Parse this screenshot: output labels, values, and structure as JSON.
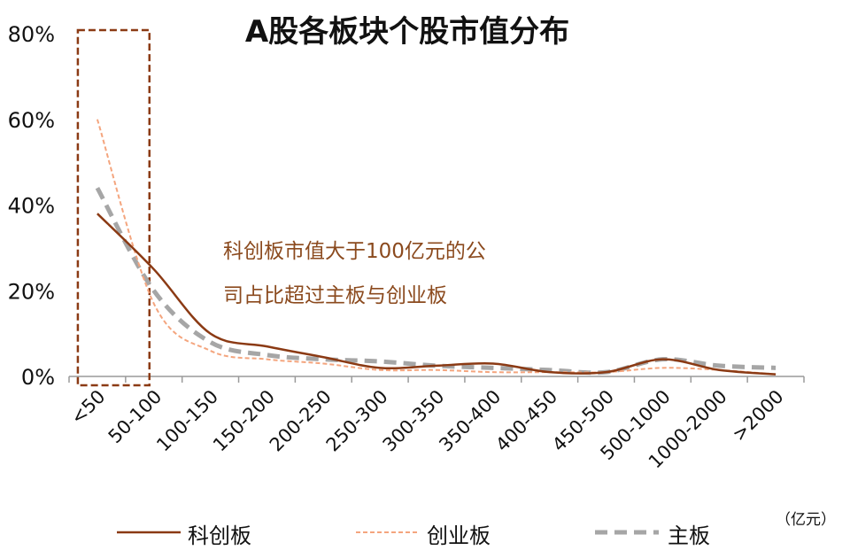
{
  "chart_data": {
    "type": "line",
    "title": "A股各板块个股市值分布",
    "categories": [
      "<50",
      "50-100",
      "100-150",
      "150-200",
      "200-250",
      "250-300",
      "300-350",
      "350-400",
      "400-450",
      "450-500",
      "500-1000",
      "1000-2000",
      ">2000"
    ],
    "series": [
      {
        "name": "科创板",
        "values": [
          38,
          25,
          10,
          7,
          4.5,
          2,
          2.5,
          3,
          1,
          1,
          4,
          1.5,
          0.5
        ],
        "color": "#8B3A14",
        "style": "solid"
      },
      {
        "name": "创业板",
        "values": [
          60,
          17,
          6,
          4,
          3,
          1.5,
          1.5,
          1,
          1,
          1,
          2,
          1.5,
          0.5
        ],
        "color": "#F4A57E",
        "style": "dashed-thin"
      },
      {
        "name": "主板",
        "values": [
          44,
          20,
          8,
          5,
          4,
          3.5,
          2.5,
          2,
          1.5,
          1,
          4,
          2.5,
          2
        ],
        "color": "#A6A6A6",
        "style": "dashed-thick"
      }
    ],
    "yticks": [
      "80%",
      "60%",
      "40%",
      "20%",
      "0%"
    ],
    "ylim": [
      0,
      80
    ],
    "unit_label": "（亿元）",
    "annotation_lines": [
      "科创板市值大于100亿元的公",
      "司占比超过主板与创业板"
    ],
    "highlight_categories": [
      "<50",
      "50-100"
    ],
    "highlight_color": "#8B3A14",
    "grid": false,
    "legend_position": "bottom"
  }
}
